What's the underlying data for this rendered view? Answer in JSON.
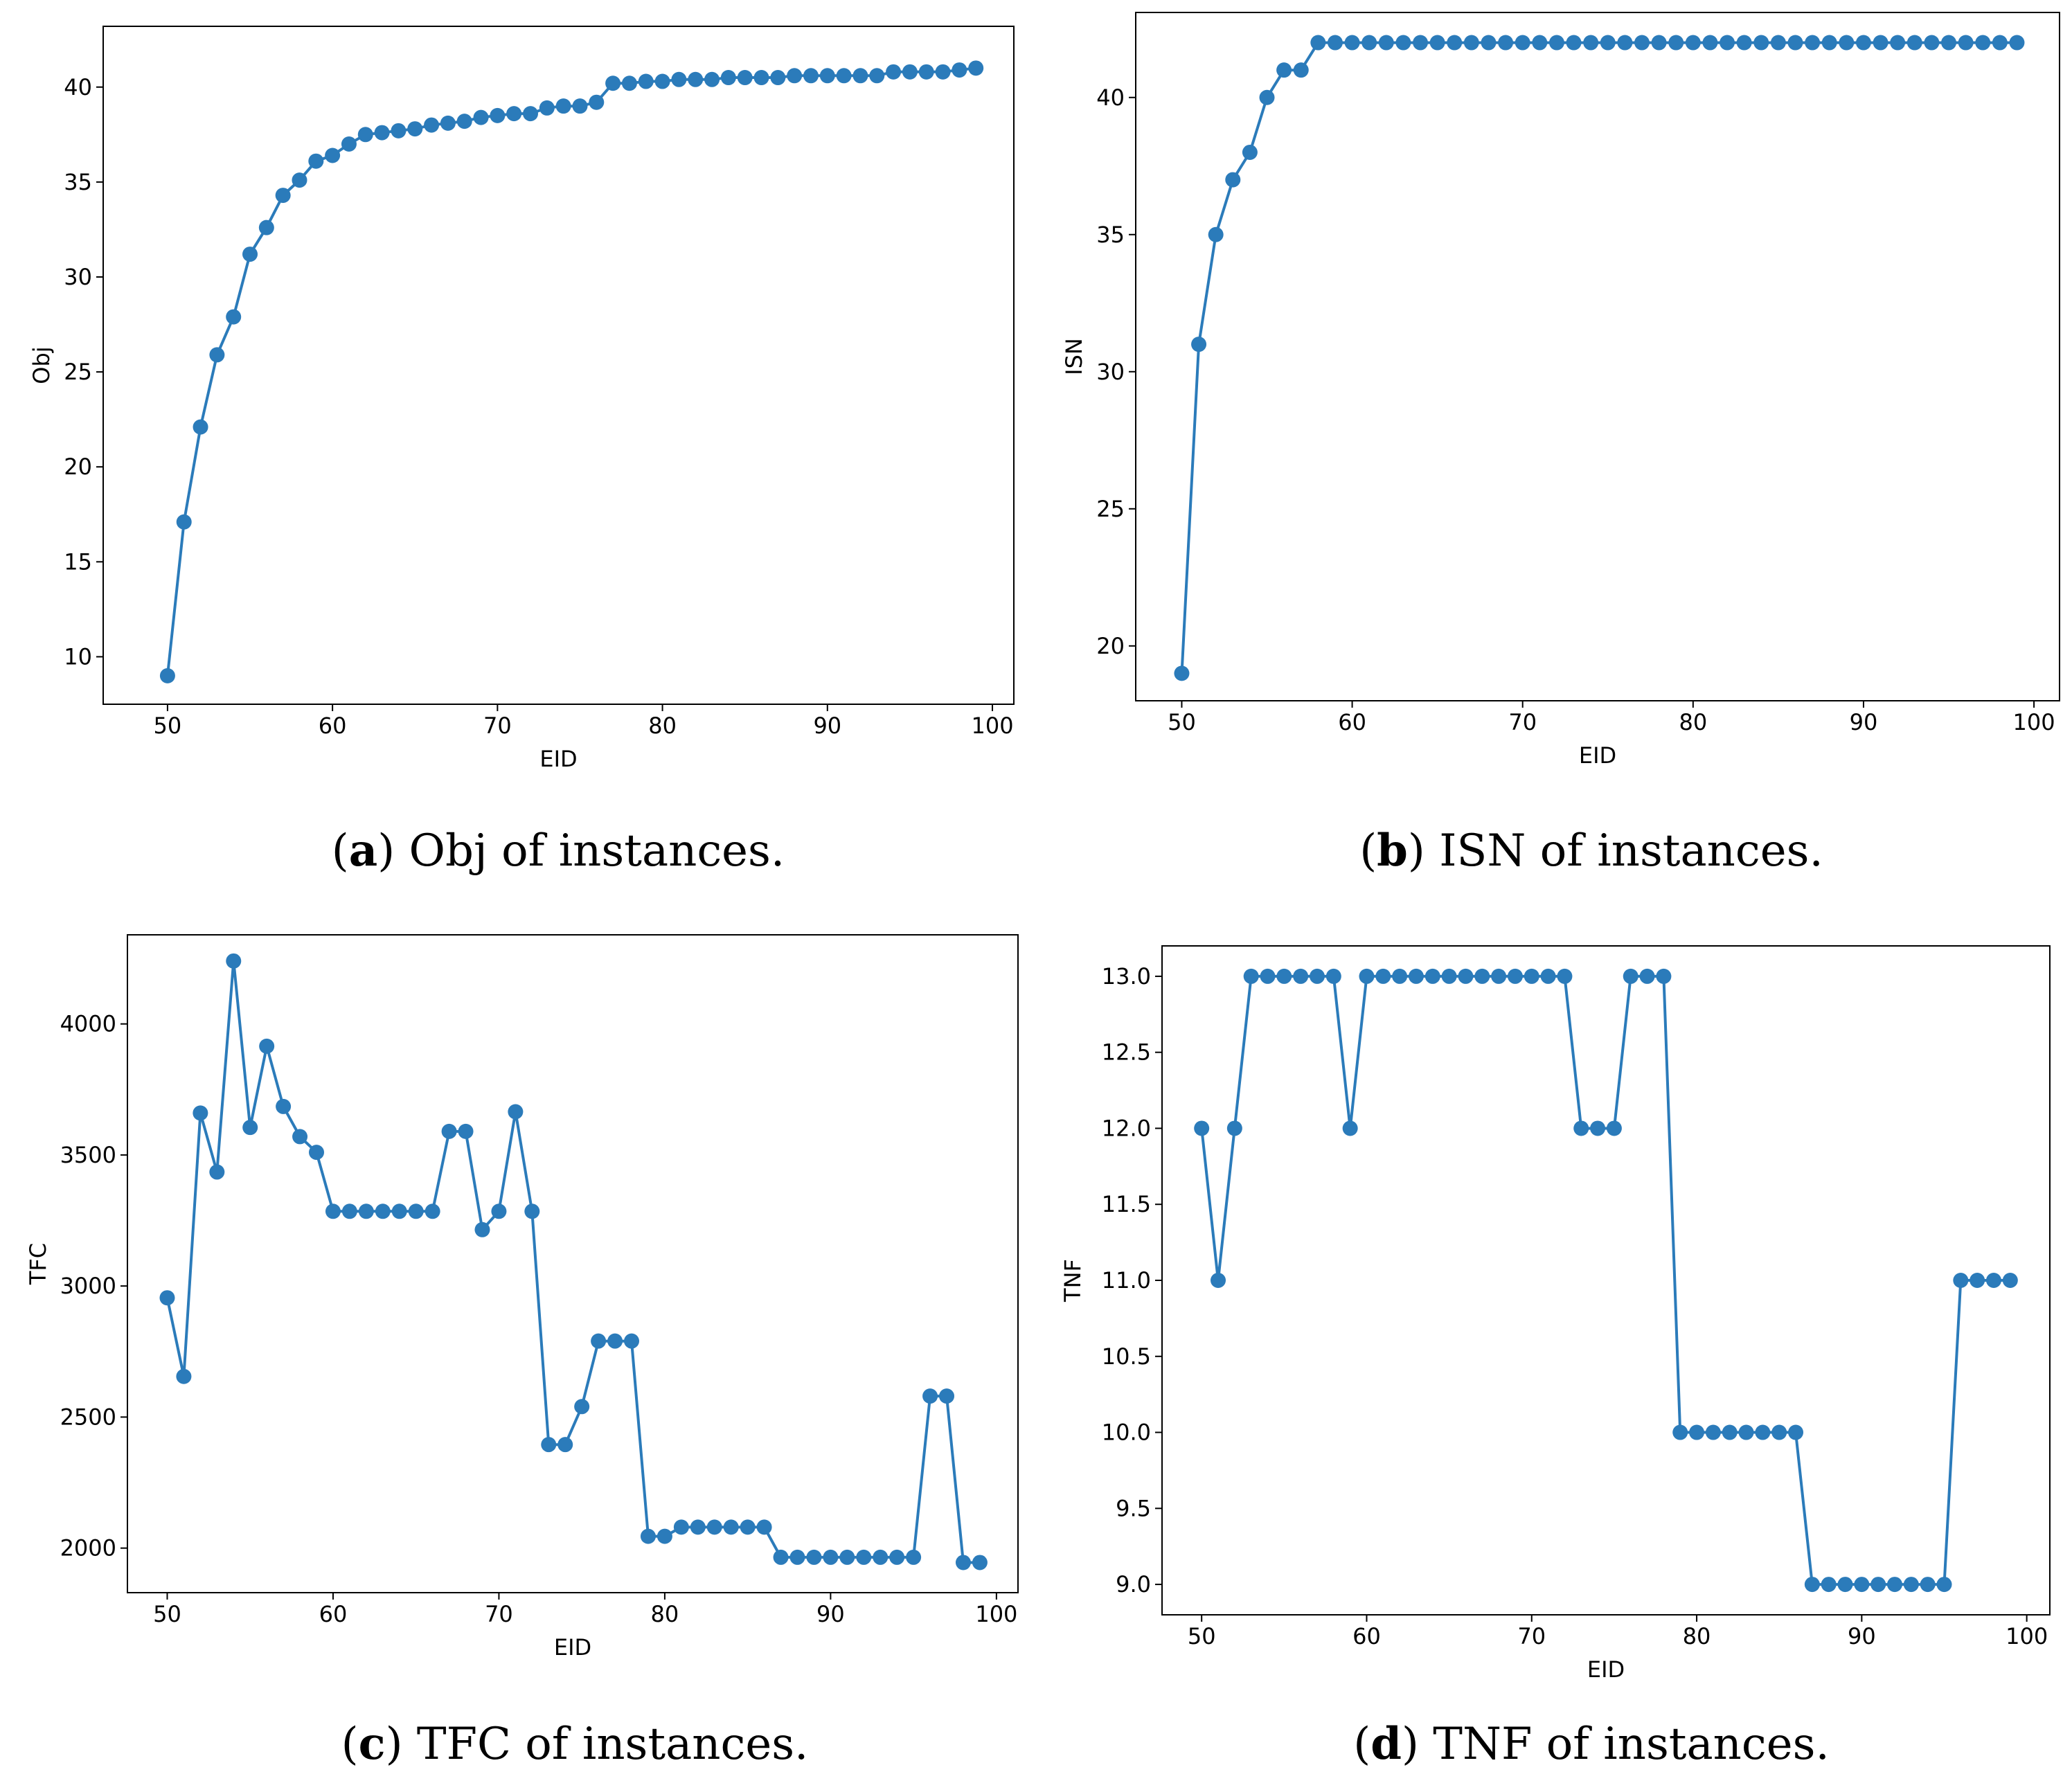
{
  "chart_data": [
    {
      "id": "a",
      "type": "line",
      "caption_letter": "a",
      "caption_text": "Obj of instances.",
      "xlabel": "EID",
      "ylabel": "Obj",
      "xlim": [
        46.1,
        101.3
      ],
      "ylim": [
        7.5,
        43.2
      ],
      "xticks": [
        50,
        60,
        70,
        80,
        90,
        100
      ],
      "yticks": [
        10,
        15,
        20,
        25,
        30,
        35,
        40
      ],
      "color": "#2b7bba",
      "x": [
        50,
        51,
        52,
        53,
        54,
        55,
        56,
        57,
        58,
        59,
        60,
        61,
        62,
        63,
        64,
        65,
        66,
        67,
        68,
        69,
        70,
        71,
        72,
        73,
        74,
        75,
        76,
        77,
        78,
        79,
        80,
        81,
        82,
        83,
        84,
        85,
        86,
        87,
        88,
        89,
        90,
        91,
        92,
        93,
        94,
        95,
        96,
        97,
        98,
        99
      ],
      "y": [
        9.0,
        17.1,
        22.1,
        25.9,
        27.9,
        31.2,
        32.6,
        34.3,
        35.1,
        36.1,
        36.4,
        37.0,
        37.5,
        37.6,
        37.7,
        37.8,
        38.0,
        38.1,
        38.2,
        38.4,
        38.5,
        38.6,
        38.6,
        38.9,
        39.0,
        39.0,
        39.2,
        40.2,
        40.2,
        40.3,
        40.3,
        40.4,
        40.4,
        40.4,
        40.5,
        40.5,
        40.5,
        40.5,
        40.6,
        40.6,
        40.6,
        40.6,
        40.6,
        40.6,
        40.8,
        40.8,
        40.8,
        40.8,
        40.9,
        41.0
      ]
    },
    {
      "id": "b",
      "type": "line",
      "caption_letter": "b",
      "caption_text": "ISN of instances.",
      "xlabel": "EID",
      "ylabel": "ISN",
      "xlim": [
        47.3,
        101.5
      ],
      "ylim": [
        18.0,
        43.1
      ],
      "xticks": [
        50,
        60,
        70,
        80,
        90,
        100
      ],
      "yticks": [
        20,
        25,
        30,
        35,
        40
      ],
      "color": "#2b7bba",
      "x": [
        50,
        51,
        52,
        53,
        54,
        55,
        56,
        57,
        58,
        59,
        60,
        61,
        62,
        63,
        64,
        65,
        66,
        67,
        68,
        69,
        70,
        71,
        72,
        73,
        74,
        75,
        76,
        77,
        78,
        79,
        80,
        81,
        82,
        83,
        84,
        85,
        86,
        87,
        88,
        89,
        90,
        91,
        92,
        93,
        94,
        95,
        96,
        97,
        98,
        99
      ],
      "y": [
        19,
        31,
        35,
        37,
        38,
        40,
        41,
        41,
        42,
        42,
        42,
        42,
        42,
        42,
        42,
        42,
        42,
        42,
        42,
        42,
        42,
        42,
        42,
        42,
        42,
        42,
        42,
        42,
        42,
        42,
        42,
        42,
        42,
        42,
        42,
        42,
        42,
        42,
        42,
        42,
        42,
        42,
        42,
        42,
        42,
        42,
        42,
        42,
        42,
        42
      ]
    },
    {
      "id": "c",
      "type": "line",
      "caption_letter": "c",
      "caption_text": "TFC of instances.",
      "xlabel": "EID",
      "ylabel": "TFC",
      "xlim": [
        47.6,
        101.3
      ],
      "ylim": [
        1830,
        4340
      ],
      "xticks": [
        50,
        60,
        70,
        80,
        90,
        100
      ],
      "yticks": [
        2000,
        2500,
        3000,
        3500,
        4000
      ],
      "ytick_labels": [
        "2000",
        "2500",
        "3000",
        "3500",
        "4000"
      ],
      "color": "#2b7bba",
      "x": [
        50,
        51,
        52,
        53,
        54,
        55,
        56,
        57,
        58,
        59,
        60,
        61,
        62,
        63,
        64,
        65,
        66,
        67,
        68,
        69,
        70,
        71,
        72,
        73,
        74,
        75,
        76,
        77,
        78,
        79,
        80,
        81,
        82,
        83,
        84,
        85,
        86,
        87,
        88,
        89,
        90,
        91,
        92,
        93,
        94,
        95,
        96,
        97,
        98,
        99
      ],
      "y": [
        2955,
        2655,
        3660,
        3435,
        4240,
        3605,
        3915,
        3685,
        3570,
        3510,
        3285,
        3285,
        3285,
        3285,
        3285,
        3285,
        3285,
        3590,
        3590,
        3215,
        3285,
        3665,
        3285,
        2395,
        2395,
        2540,
        2790,
        2790,
        2790,
        2045,
        2045,
        2080,
        2080,
        2080,
        2080,
        2080,
        2080,
        1965,
        1965,
        1965,
        1965,
        1965,
        1965,
        1965,
        1965,
        1965,
        2580,
        2580,
        1945,
        1945
      ]
    },
    {
      "id": "d",
      "type": "line",
      "caption_letter": "d",
      "caption_text": "TNF of instances.",
      "xlabel": "EID",
      "ylabel": "TNF",
      "xlim": [
        47.6,
        101.4
      ],
      "ylim": [
        8.8,
        13.2
      ],
      "xticks": [
        50,
        60,
        70,
        80,
        90,
        100
      ],
      "yticks": [
        9.0,
        9.5,
        10.0,
        10.5,
        11.0,
        11.5,
        12.0,
        12.5,
        13.0
      ],
      "ytick_labels": [
        "9.0",
        "9.5",
        "10.0",
        "10.5",
        "11.0",
        "11.5",
        "12.0",
        "12.5",
        "13.0"
      ],
      "color": "#2b7bba",
      "x": [
        50,
        51,
        52,
        53,
        54,
        55,
        56,
        57,
        58,
        59,
        60,
        61,
        62,
        63,
        64,
        65,
        66,
        67,
        68,
        69,
        70,
        71,
        72,
        73,
        74,
        75,
        76,
        77,
        78,
        79,
        80,
        81,
        82,
        83,
        84,
        85,
        86,
        87,
        88,
        89,
        90,
        91,
        92,
        93,
        94,
        95,
        96,
        97,
        98,
        99
      ],
      "y": [
        12,
        11,
        12,
        13,
        13,
        13,
        13,
        13,
        13,
        12,
        13,
        13,
        13,
        13,
        13,
        13,
        13,
        13,
        13,
        13,
        13,
        13,
        13,
        12,
        12,
        12,
        13,
        13,
        13,
        10,
        10,
        10,
        10,
        10,
        10,
        10,
        10,
        9,
        9,
        9,
        9,
        9,
        9,
        9,
        9,
        9,
        11,
        11,
        11,
        11
      ]
    }
  ]
}
